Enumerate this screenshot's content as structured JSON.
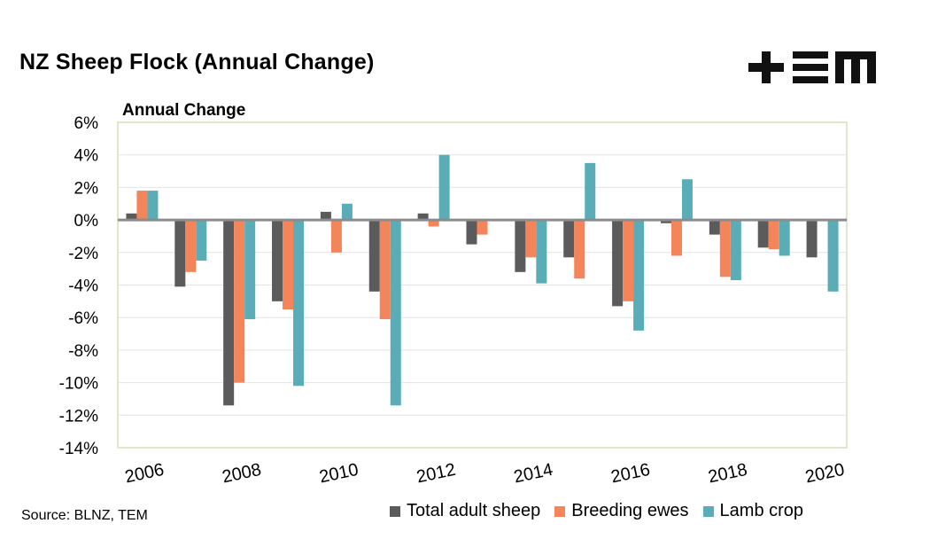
{
  "header": {
    "title": "NZ Sheep Flock (Annual Change)",
    "logo_text": "+EM"
  },
  "source": "Source: BLNZ, TEM",
  "chart_data": {
    "type": "bar",
    "title": "NZ Sheep Flock (Annual Change)",
    "ylabel": "Annual Change",
    "xlabel": "",
    "ylim": [
      -14,
      6
    ],
    "yticks": [
      6,
      4,
      2,
      0,
      -2,
      -4,
      -6,
      -8,
      -10,
      -12,
      -14
    ],
    "ytick_format": "percent",
    "categories": [
      "2006",
      "2007",
      "2008",
      "2009",
      "2010",
      "2011",
      "2012",
      "2013",
      "2014",
      "2015",
      "2016",
      "2017",
      "2018",
      "2019",
      "2020"
    ],
    "xtick_labels": [
      "2006",
      "2008",
      "2010",
      "2012",
      "2014",
      "2016",
      "2018",
      "2020"
    ],
    "series": [
      {
        "name": "Total adult sheep",
        "color": "#5b5b5b",
        "values": [
          0.4,
          -4.1,
          -11.4,
          -5.0,
          0.5,
          -4.4,
          0.4,
          -1.5,
          -3.2,
          -2.3,
          -5.3,
          -0.2,
          -0.9,
          -1.7,
          -2.3
        ]
      },
      {
        "name": "Breeding ewes",
        "color": "#f4845a",
        "values": [
          1.8,
          -3.2,
          -10.0,
          -5.5,
          -2.0,
          -6.1,
          -0.4,
          -0.9,
          -2.3,
          -3.6,
          -5.0,
          -2.2,
          -3.5,
          -1.8,
          0.0
        ]
      },
      {
        "name": "Lamb crop",
        "color": "#5aadb6",
        "values": [
          1.8,
          -2.5,
          -6.1,
          -10.2,
          1.0,
          -11.4,
          4.0,
          0.0,
          -3.9,
          3.5,
          -6.8,
          2.5,
          -3.7,
          -2.2,
          -4.4
        ]
      }
    ],
    "grid": true,
    "legend_position": "bottom-right"
  }
}
